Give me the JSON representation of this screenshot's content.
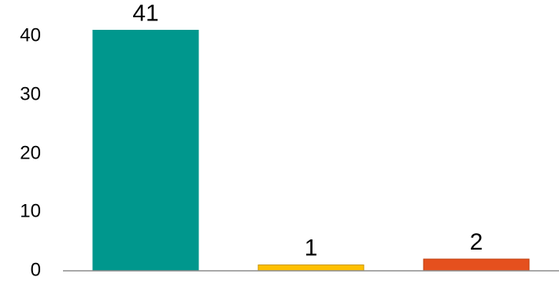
{
  "chart_data": {
    "type": "bar",
    "categories": [
      "",
      "",
      ""
    ],
    "values": [
      41,
      1,
      2
    ],
    "data_labels": [
      "41",
      "1",
      "2"
    ],
    "colors": [
      "#00978D",
      "#FFC000",
      "#E5501E"
    ],
    "bar_outline_colors": [
      "#00978D",
      "#C89600",
      "#C0410F"
    ],
    "y_ticks": [
      "0",
      "10",
      "20",
      "30",
      "40"
    ],
    "ylim": [
      0,
      40
    ],
    "title": "",
    "xlabel": "",
    "ylabel": "",
    "grid": false,
    "legend": "none"
  }
}
